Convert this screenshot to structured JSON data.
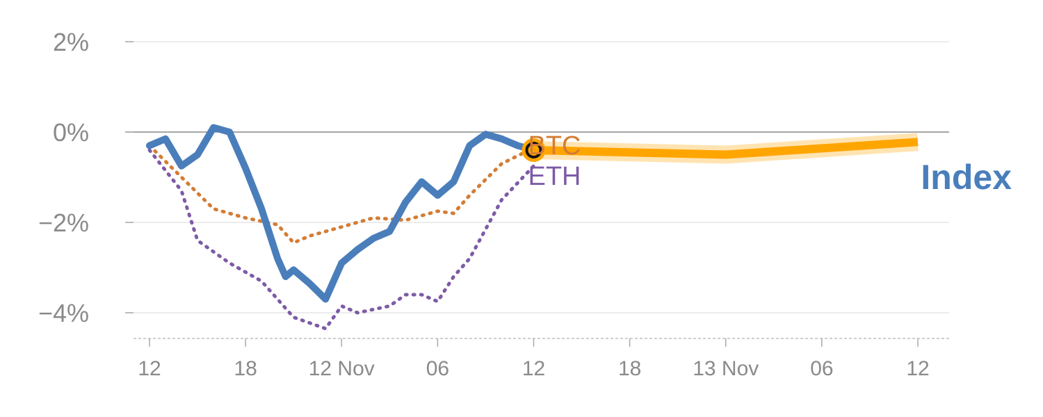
{
  "chart_data": {
    "type": "line",
    "title": "",
    "xlabel": "",
    "ylabel": "",
    "x_range": [
      0,
      48
    ],
    "ylim": [
      -4.6,
      2
    ],
    "y_ticks": [
      {
        "value": 2,
        "label": "2%"
      },
      {
        "value": 0,
        "label": "0%"
      },
      {
        "value": -2,
        "label": "−2%"
      },
      {
        "value": -4,
        "label": "−4%"
      }
    ],
    "x_ticks": [
      {
        "x": 0,
        "label": "12"
      },
      {
        "x": 6,
        "label": "18"
      },
      {
        "x": 12,
        "label": "12 Nov"
      },
      {
        "x": 18,
        "label": "06"
      },
      {
        "x": 24,
        "label": "12"
      },
      {
        "x": 30,
        "label": "18"
      },
      {
        "x": 36,
        "label": "13 Nov"
      },
      {
        "x": 42,
        "label": "06"
      },
      {
        "x": 48,
        "label": "12"
      }
    ],
    "series": [
      {
        "name": "Index",
        "label": "Index",
        "color": "#4a7ebb",
        "style": "solid",
        "x": [
          0,
          1,
          2,
          3,
          4,
          5,
          6,
          7,
          8,
          8.5,
          9,
          10,
          11,
          12,
          13,
          14,
          15,
          16,
          17,
          18,
          19,
          20,
          21,
          22,
          23,
          24
        ],
        "values": [
          -0.3,
          -0.15,
          -0.75,
          -0.5,
          0.1,
          0.0,
          -0.8,
          -1.7,
          -2.8,
          -3.2,
          -3.05,
          -3.35,
          -3.7,
          -2.9,
          -2.6,
          -2.35,
          -2.2,
          -1.55,
          -1.1,
          -1.4,
          -1.1,
          -0.3,
          -0.05,
          -0.15,
          -0.3,
          -0.4
        ]
      },
      {
        "name": "BTC",
        "label": "BTC",
        "color": "#d47c34",
        "style": "dotted",
        "x": [
          0,
          2,
          4,
          6,
          8,
          9,
          10,
          12,
          14,
          16,
          18,
          19,
          20,
          22,
          24
        ],
        "values": [
          -0.3,
          -1.0,
          -1.7,
          -1.9,
          -2.05,
          -2.45,
          -2.3,
          -2.1,
          -1.9,
          -1.95,
          -1.75,
          -1.8,
          -1.4,
          -0.7,
          -0.35
        ]
      },
      {
        "name": "ETH",
        "label": "ETH",
        "color": "#7d5ba6",
        "style": "dotted",
        "x": [
          0,
          2,
          3,
          5,
          7,
          9,
          11,
          12,
          13,
          15,
          16,
          17,
          18,
          19,
          20,
          22,
          24
        ],
        "values": [
          -0.4,
          -1.3,
          -2.4,
          -2.9,
          -3.3,
          -4.1,
          -4.35,
          -3.85,
          -4.0,
          -3.85,
          -3.6,
          -3.6,
          -3.75,
          -3.2,
          -2.8,
          -1.5,
          -0.75
        ]
      },
      {
        "name": "Forecast",
        "label": "",
        "color": "#ffa500",
        "style": "band",
        "x": [
          24,
          36,
          48
        ],
        "values": [
          -0.4,
          -0.5,
          -0.22
        ]
      }
    ],
    "marker": {
      "x": 24,
      "value": -0.4
    }
  }
}
